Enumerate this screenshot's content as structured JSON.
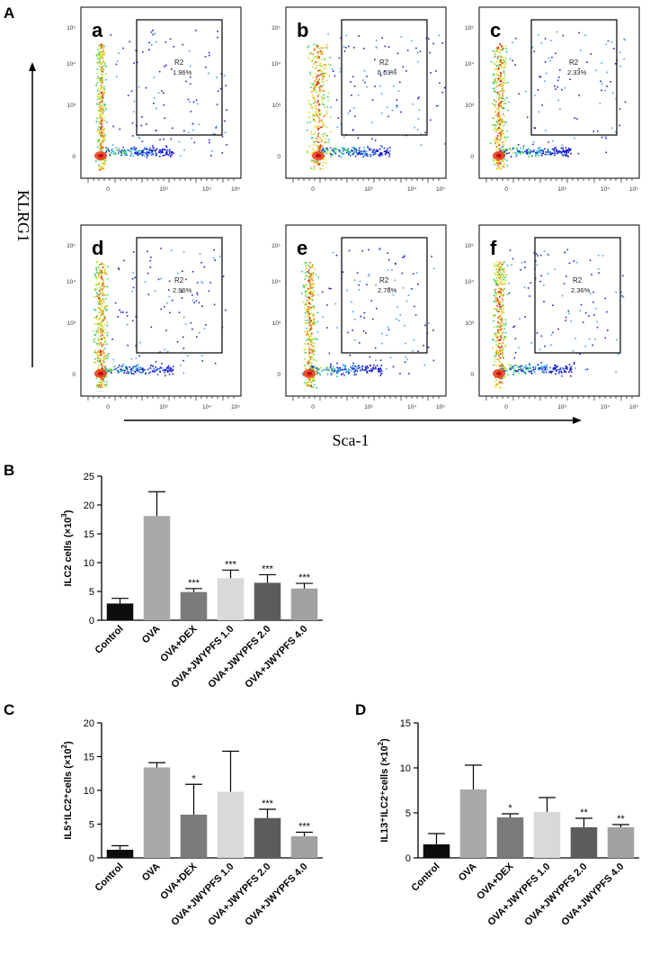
{
  "panels": {
    "A": "A",
    "B": "B",
    "C": "C",
    "D": "D"
  },
  "flow": {
    "y_axis_label": "KLRG1",
    "x_axis_label": "Sca-1",
    "gate_name": "R2",
    "x_ticks": [
      "0",
      "10³",
      "10⁴",
      "10⁵"
    ],
    "y_ticks": [
      "10⁵",
      "10⁴",
      "10³",
      "0"
    ],
    "plots": [
      {
        "letter": "a",
        "percent": "1.96%"
      },
      {
        "letter": "b",
        "percent": "5.03%"
      },
      {
        "letter": "c",
        "percent": "2.33%"
      },
      {
        "letter": "d",
        "percent": "2.96%"
      },
      {
        "letter": "e",
        "percent": "2.78%"
      },
      {
        "letter": "f",
        "percent": "2.36%"
      }
    ]
  },
  "chart_data": [
    {
      "id": "B",
      "type": "bar",
      "ylabel_main": "ILC2 cells (×10",
      "ylabel_sup": "3",
      "ylabel_end": ")",
      "categories": [
        "Control",
        "OVA",
        "OVA+DEX",
        "OVA+JWYPFS 1.0",
        "OVA+JWYPFS 2.0",
        "OVA+JWYPFS 4.0"
      ],
      "values": [
        2.9,
        18.1,
        4.9,
        7.3,
        6.5,
        5.5
      ],
      "errors": [
        0.9,
        4.2,
        0.6,
        1.4,
        1.4,
        0.9
      ],
      "significance": [
        "",
        "",
        "***",
        "***",
        "***",
        "***"
      ],
      "colors": [
        "#0d0d0d",
        "#a9a9a9",
        "#7b7b7b",
        "#d9d9d9",
        "#5c5c5c",
        "#a2a2a2"
      ],
      "ylim": [
        0,
        25
      ],
      "yticks": [
        0,
        5,
        10,
        15,
        20,
        25
      ]
    },
    {
      "id": "C",
      "type": "bar",
      "ylabel_main": "IL5⁺ILC2⁺cells (×10",
      "ylabel_sup": "2",
      "ylabel_end": ")",
      "categories": [
        "Control",
        "OVA",
        "OVA+DEX",
        "OVA+JWYPFS 1.0",
        "OVA+JWYPFS 2.0",
        "OVA+JWYPFS 4.0"
      ],
      "values": [
        1.2,
        13.4,
        6.4,
        9.8,
        5.9,
        3.2
      ],
      "errors": [
        0.6,
        0.7,
        4.5,
        6.0,
        1.3,
        0.6
      ],
      "significance": [
        "",
        "",
        "*",
        "",
        "***",
        "***"
      ],
      "colors": [
        "#0d0d0d",
        "#a9a9a9",
        "#7b7b7b",
        "#d9d9d9",
        "#5c5c5c",
        "#a2a2a2"
      ],
      "ylim": [
        0,
        20
      ],
      "yticks": [
        0,
        5,
        10,
        15,
        20
      ]
    },
    {
      "id": "D",
      "type": "bar",
      "ylabel_main": "IL13⁺ILC2⁺cells (×10",
      "ylabel_sup": "2",
      "ylabel_end": ")",
      "categories": [
        "Control",
        "OVA",
        "OVA+DEX",
        "OVA+JWYPFS 1.0",
        "OVA+JWYPFS 2.0",
        "OVA+JWYPFS 4.0"
      ],
      "values": [
        1.5,
        7.6,
        4.5,
        5.1,
        3.4,
        3.4
      ],
      "errors": [
        1.2,
        2.7,
        0.4,
        1.6,
        1.0,
        0.3
      ],
      "significance": [
        "",
        "",
        "*",
        "",
        "**",
        "**"
      ],
      "colors": [
        "#0d0d0d",
        "#a9a9a9",
        "#7b7b7b",
        "#d9d9d9",
        "#5c5c5c",
        "#a2a2a2"
      ],
      "ylim": [
        0,
        15
      ],
      "yticks": [
        0,
        5,
        10,
        15
      ]
    }
  ]
}
